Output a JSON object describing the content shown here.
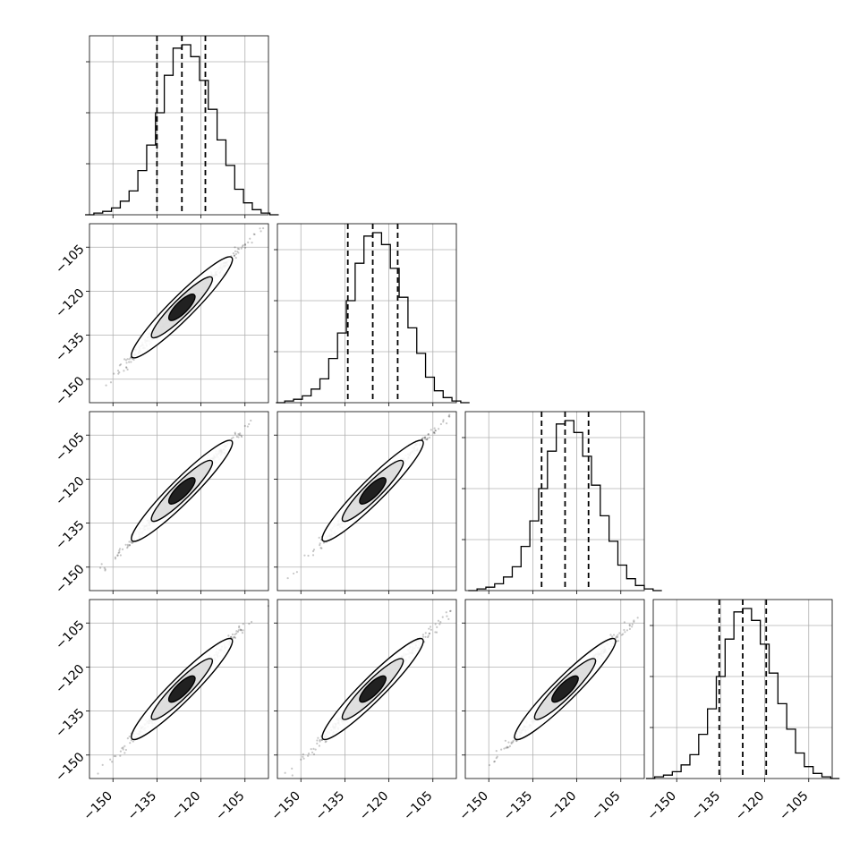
{
  "chart_data": {
    "type": "corner",
    "dimensions": 4,
    "tick_values": [
      -150,
      -135,
      -120,
      -105
    ],
    "tick_labels": [
      "−150",
      "−135",
      "−120",
      "−105"
    ],
    "axis_range": [
      -158,
      -97
    ],
    "grid": true,
    "histograms": [
      {
        "median": -126.5,
        "q16": -135.0,
        "q84": -118.5
      },
      {
        "median": -125.5,
        "q16": -134.0,
        "q84": -117.0
      },
      {
        "median": -124.0,
        "q16": -132.0,
        "q84": -116.0
      },
      {
        "median": -127.5,
        "q16": -135.5,
        "q84": -119.5
      }
    ],
    "histogram_shape": {
      "bin_width": 3,
      "relative_counts": [
        0.0,
        0.01,
        0.02,
        0.04,
        0.08,
        0.14,
        0.26,
        0.41,
        0.6,
        0.82,
        0.98,
        1.0,
        0.93,
        0.79,
        0.62,
        0.44,
        0.29,
        0.15,
        0.07,
        0.03,
        0.01,
        0.0
      ]
    },
    "correlation": 0.995,
    "std": 8.5
  }
}
